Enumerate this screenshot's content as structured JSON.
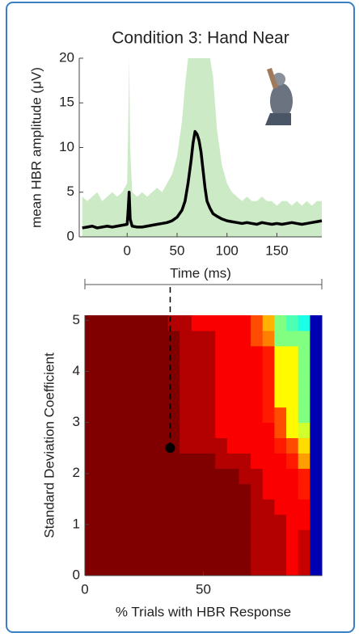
{
  "chart_data": [
    {
      "type": "line",
      "title": "Condition 3: Hand Near",
      "ylabel": "mean HBR amplitude (μV)",
      "xlabel": "Time (ms)",
      "xlim": [
        -48,
        195
      ],
      "ylim": [
        0,
        20
      ],
      "xticks": [
        0,
        50,
        100,
        150
      ],
      "yticks": [
        0,
        5,
        10,
        15,
        20
      ],
      "x": [
        -45,
        -40,
        -35,
        -30,
        -25,
        -20,
        -15,
        -10,
        -5,
        0,
        1,
        2,
        3,
        5,
        10,
        15,
        20,
        25,
        30,
        35,
        40,
        45,
        50,
        55,
        58,
        61,
        64,
        66,
        68,
        70,
        72,
        74,
        76,
        78,
        80,
        83,
        86,
        90,
        95,
        100,
        105,
        110,
        115,
        120,
        125,
        130,
        135,
        140,
        145,
        150,
        155,
        160,
        165,
        170,
        175,
        180,
        185,
        190,
        195
      ],
      "series": [
        {
          "style": "area",
          "color": "#cdeac6",
          "values": [
            4.5,
            4,
            4.5,
            5,
            4,
            4.5,
            5,
            4.5,
            5,
            6,
            12,
            20,
            10,
            5,
            4.5,
            5,
            4.5,
            5,
            5.5,
            5,
            6,
            7,
            9,
            13,
            17,
            20,
            20,
            20,
            20,
            20,
            20,
            20,
            20,
            20,
            20,
            20,
            18,
            12,
            8,
            6,
            5,
            4.5,
            4,
            4.5,
            4,
            4,
            4.5,
            4,
            4,
            3.5,
            4,
            4,
            3.5,
            4,
            3.5,
            4,
            3.5,
            4,
            4
          ]
        },
        {
          "style": "line",
          "color": "#000000",
          "values": [
            1.0,
            1.1,
            1.2,
            1.0,
            1.1,
            1.2,
            1.1,
            1.2,
            1.3,
            1.4,
            3.0,
            5.0,
            2.0,
            1.2,
            1.1,
            1.1,
            1.2,
            1.3,
            1.4,
            1.5,
            1.6,
            1.8,
            2.2,
            3.0,
            4.0,
            6.0,
            8.5,
            10.5,
            11.8,
            11.5,
            10.8,
            9.5,
            7.5,
            5.5,
            4.0,
            3.2,
            2.6,
            2.3,
            2.0,
            1.8,
            1.7,
            1.6,
            1.5,
            1.6,
            1.5,
            1.4,
            1.6,
            1.5,
            1.4,
            1.5,
            1.4,
            1.5,
            1.6,
            1.5,
            1.4,
            1.5,
            1.6,
            1.7,
            1.8
          ]
        }
      ]
    },
    {
      "type": "heatmap",
      "colormap": "jet",
      "ylabel": "Standard Deviation Coefficient",
      "xlabel": "% Trials with HBR Response",
      "xlim": [
        0,
        100
      ],
      "ylim": [
        0,
        5.1
      ],
      "xticks": [
        0,
        50
      ],
      "yticks": [
        0,
        1,
        2,
        3,
        4,
        5
      ],
      "x": [
        0,
        5,
        10,
        15,
        20,
        25,
        30,
        35,
        40,
        45,
        50,
        55,
        60,
        65,
        70,
        75,
        80,
        85,
        90,
        95,
        100
      ],
      "y": [
        0,
        0.3,
        0.6,
        0.9,
        1.2,
        1.5,
        1.8,
        2.1,
        2.4,
        2.7,
        3.0,
        3.3,
        3.6,
        3.9,
        4.2,
        4.5,
        4.8,
        5.1
      ],
      "zlim": [
        0,
        1
      ],
      "z": [
        [
          1,
          1,
          1,
          1,
          1,
          1,
          1,
          1,
          1,
          1,
          1,
          1,
          1,
          1,
          0.95,
          0.95,
          0.95,
          0.88,
          0.93,
          0.05
        ],
        [
          1,
          1,
          1,
          1,
          1,
          1,
          1,
          1,
          1,
          1,
          1,
          1,
          1,
          1,
          0.95,
          0.95,
          0.95,
          0.88,
          0.93,
          0.05
        ],
        [
          1,
          1,
          1,
          1,
          1,
          1,
          1,
          1,
          1,
          1,
          1,
          1,
          1,
          1,
          0.95,
          0.95,
          0.95,
          0.88,
          0.93,
          0.05
        ],
        [
          1,
          1,
          1,
          1,
          1,
          1,
          1,
          1,
          1,
          1,
          1,
          1,
          1,
          1,
          0.95,
          0.95,
          0.95,
          0.88,
          0.88,
          0.05
        ],
        [
          1,
          1,
          1,
          1,
          1,
          1,
          1,
          1,
          1,
          1,
          1,
          1,
          1,
          1,
          0.95,
          0.95,
          0.88,
          0.88,
          0.88,
          0.05
        ],
        [
          1,
          1,
          1,
          1,
          1,
          1,
          1,
          1,
          1,
          1,
          1,
          1,
          1,
          1,
          0.95,
          0.88,
          0.88,
          0.88,
          0.85,
          0.05
        ],
        [
          1,
          1,
          1,
          1,
          1,
          1,
          1,
          1,
          1,
          1,
          1,
          1,
          1,
          0.95,
          0.95,
          0.88,
          0.88,
          0.88,
          0.85,
          0.05
        ],
        [
          1,
          1,
          1,
          1,
          1,
          1,
          1,
          1,
          1,
          1,
          1,
          0.95,
          0.95,
          0.95,
          0.88,
          0.88,
          0.88,
          0.85,
          0.72,
          0.05
        ],
        [
          1,
          1,
          1,
          1,
          1,
          1,
          1,
          1,
          0.95,
          0.95,
          0.95,
          0.95,
          0.88,
          0.88,
          0.88,
          0.88,
          0.85,
          0.8,
          0.66,
          0.05
        ],
        [
          1,
          1,
          1,
          1,
          1,
          1,
          1,
          1,
          0.95,
          0.95,
          0.95,
          0.88,
          0.88,
          0.88,
          0.88,
          0.88,
          0.8,
          0.63,
          0.58,
          0.05
        ],
        [
          1,
          1,
          1,
          1,
          1,
          1,
          1,
          1,
          0.95,
          0.95,
          0.95,
          0.88,
          0.88,
          0.88,
          0.88,
          0.85,
          0.8,
          0.63,
          0.5,
          0.05
        ],
        [
          1,
          1,
          1,
          1,
          1,
          1,
          1,
          1,
          0.95,
          0.95,
          0.95,
          0.88,
          0.88,
          0.88,
          0.88,
          0.85,
          0.63,
          0.63,
          0.5,
          0.05
        ],
        [
          1,
          1,
          1,
          1,
          1,
          1,
          1,
          1,
          0.95,
          0.95,
          0.95,
          0.88,
          0.88,
          0.88,
          0.88,
          0.85,
          0.63,
          0.63,
          0.5,
          0.05
        ],
        [
          1,
          1,
          1,
          1,
          1,
          1,
          1,
          1,
          0.95,
          0.95,
          0.95,
          0.88,
          0.88,
          0.88,
          0.88,
          0.85,
          0.63,
          0.63,
          0.5,
          0.05
        ],
        [
          1,
          1,
          1,
          1,
          1,
          1,
          1,
          1,
          0.95,
          0.95,
          0.95,
          0.88,
          0.88,
          0.88,
          0.88,
          0.85,
          0.63,
          0.63,
          0.5,
          0.05
        ],
        [
          1,
          1,
          1,
          1,
          1,
          1,
          1,
          1,
          0.95,
          0.95,
          0.95,
          0.88,
          0.88,
          0.88,
          0.8,
          0.75,
          0.5,
          0.5,
          0.5,
          0.05
        ],
        [
          1,
          1,
          1,
          1,
          1,
          1,
          1,
          0.95,
          0.95,
          0.88,
          0.88,
          0.88,
          0.88,
          0.88,
          0.8,
          0.7,
          0.5,
          0.45,
          0.4,
          0.05
        ]
      ],
      "marker": {
        "x": 36,
        "y": 2.5,
        "color": "#000000"
      }
    }
  ]
}
